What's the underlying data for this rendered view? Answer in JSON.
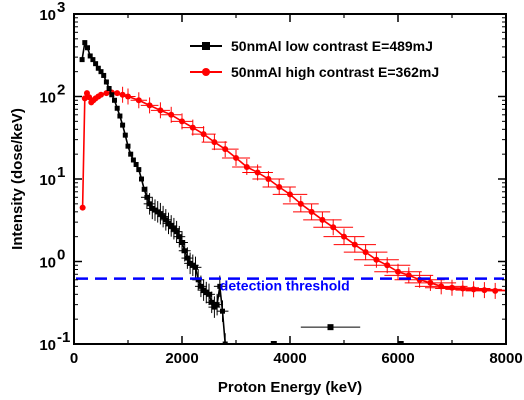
{
  "chart_data": {
    "type": "line",
    "xlabel": "Proton Energy (keV)",
    "ylabel": "Intensity (dose/keV)",
    "xlim": [
      0,
      8000
    ],
    "ylim": [
      0.1,
      1000
    ],
    "yscale": "log",
    "xticks": [
      0,
      2000,
      4000,
      6000,
      8000
    ],
    "xtick_labels": [
      "0",
      "2000",
      "4000",
      "6000",
      "8000"
    ],
    "yticks": [
      0.1,
      1,
      10,
      100,
      1000
    ],
    "ytick_labels": [
      {
        "base": "10",
        "exp": "-1"
      },
      {
        "base": "10",
        "exp": "0"
      },
      {
        "base": "10",
        "exp": "1"
      },
      {
        "base": "10",
        "exp": "2"
      },
      {
        "base": "10",
        "exp": "3"
      }
    ],
    "grid": false,
    "legend_position": "top-right",
    "series": [
      {
        "name": "50nmAl low contrast E=489mJ",
        "color": "#000000",
        "marker": "square",
        "x": [
          150,
          200,
          250,
          300,
          350,
          400,
          450,
          500,
          550,
          600,
          650,
          700,
          750,
          800,
          850,
          900,
          950,
          1000,
          1050,
          1100,
          1150,
          1200,
          1250,
          1300,
          1350,
          1400,
          1450,
          1500,
          1550,
          1600,
          1650,
          1700,
          1750,
          1800,
          1850,
          1900,
          1950,
          2000,
          2050,
          2100,
          2150,
          2200,
          2250,
          2300,
          2350,
          2400,
          2450,
          2500,
          2550,
          2600,
          2650,
          2700,
          2750,
          2800
        ],
        "y": [
          280,
          450,
          390,
          310,
          280,
          250,
          220,
          200,
          180,
          150,
          125,
          105,
          90,
          72,
          58,
          45,
          34,
          25,
          20,
          17,
          15,
          13,
          10,
          7.5,
          6,
          5,
          4.4,
          4.2,
          4.0,
          3.8,
          3.5,
          3.2,
          2.9,
          2.7,
          2.5,
          2.3,
          2.0,
          1.7,
          1.35,
          1.1,
          0.95,
          0.9,
          0.85,
          0.6,
          0.5,
          0.45,
          0.42,
          0.4,
          0.32,
          0.28,
          0.3,
          0.5,
          0.25,
          0.1
        ],
        "outliers": [
          {
            "x": 3700,
            "y": 0.1
          },
          {
            "x": 4750,
            "y": 0.16
          },
          {
            "x": 6050,
            "y": 0.1
          }
        ]
      },
      {
        "name": "50nmAl high contrast E=362mJ",
        "color": "#ff0000",
        "marker": "circle",
        "x": [
          160,
          200,
          240,
          280,
          320,
          360,
          400,
          450,
          500,
          600,
          700,
          800,
          900,
          1000,
          1200,
          1400,
          1600,
          1800,
          2000,
          2200,
          2400,
          2600,
          2800,
          3000,
          3200,
          3400,
          3600,
          3800,
          4000,
          4200,
          4400,
          4600,
          4800,
          5000,
          5200,
          5400,
          5600,
          5800,
          6000,
          6200,
          6400,
          6600,
          6800,
          7000,
          7200,
          7400,
          7600,
          7800
        ],
        "y": [
          4.5,
          95,
          110,
          98,
          85,
          90,
          95,
          100,
          105,
          110,
          112,
          110,
          105,
          100,
          90,
          78,
          68,
          60,
          50,
          42,
          35,
          28,
          23,
          18,
          14,
          12,
          10,
          8,
          6.5,
          5.0,
          4.0,
          3.2,
          2.6,
          2.0,
          1.6,
          1.3,
          1.05,
          0.9,
          0.75,
          0.68,
          0.6,
          0.55,
          0.5,
          0.48,
          0.47,
          0.46,
          0.45,
          0.44
        ]
      }
    ],
    "annotations": [
      {
        "text": "detection threshold",
        "y": 0.62,
        "style": "dashed",
        "color": "#0000ff"
      }
    ]
  }
}
